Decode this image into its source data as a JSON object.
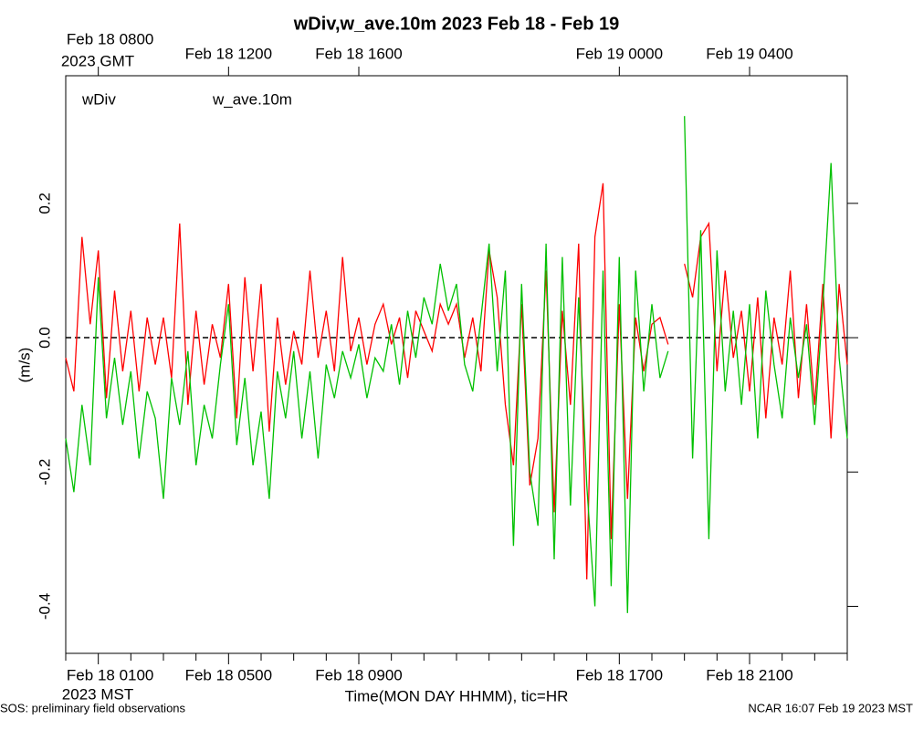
{
  "chart_data": {
    "type": "line",
    "title": "wDiv,w_ave.10m 2023 Feb 18 - Feb 19",
    "x_label": "Time(MON DAY HHMM), tic=HR",
    "y_label": "(m/s)",
    "x_unit_label": "2023 MST",
    "x2_unit_label": "2023 GMT",
    "footer_left": "SOS: preliminary field observations",
    "footer_right": "NCAR 16:07 Feb 19 2023 MST",
    "xlim": [
      0,
      24
    ],
    "xticks": [
      {
        "value": 1,
        "label": "Feb 18 0100"
      },
      {
        "value": 5,
        "label": "Feb 18 0500"
      },
      {
        "value": 9,
        "label": "Feb 18 0900"
      },
      {
        "value": 17,
        "label": "Feb 18 1700"
      },
      {
        "value": 21,
        "label": "Feb 18 2100"
      }
    ],
    "xminorticks": [
      0,
      2,
      3,
      4,
      6,
      7,
      8,
      10,
      11,
      12,
      13,
      14,
      15,
      16,
      18,
      19,
      20,
      22,
      23,
      24
    ],
    "x2ticks": [
      {
        "value": 1,
        "label": "Feb 18 0800"
      },
      {
        "value": 5,
        "label": "Feb 18 1200"
      },
      {
        "value": 9,
        "label": "Feb 18 1600"
      },
      {
        "value": 17,
        "label": "Feb 19 0000"
      },
      {
        "value": 21,
        "label": "Feb 19 0400"
      }
    ],
    "ylim": [
      -0.47,
      0.39
    ],
    "yticks": [
      {
        "value": -0.4,
        "label": "-0.4"
      },
      {
        "value": -0.2,
        "label": "-0.2"
      },
      {
        "value": 0,
        "label": "0.0"
      },
      {
        "value": 0.2,
        "label": "0.2"
      }
    ],
    "hline": 0,
    "x": [
      0,
      0.25,
      0.5,
      0.75,
      1,
      1.25,
      1.5,
      1.75,
      2,
      2.25,
      2.5,
      2.75,
      3,
      3.25,
      3.5,
      3.75,
      4,
      4.25,
      4.5,
      4.75,
      5,
      5.25,
      5.5,
      5.75,
      6,
      6.25,
      6.5,
      6.75,
      7,
      7.25,
      7.5,
      7.75,
      8,
      8.25,
      8.5,
      8.75,
      9,
      9.25,
      9.5,
      9.75,
      10,
      10.25,
      10.5,
      10.75,
      11,
      11.25,
      11.5,
      11.75,
      12,
      12.25,
      12.5,
      12.75,
      13,
      13.25,
      13.5,
      13.75,
      14,
      14.25,
      14.5,
      14.75,
      15,
      15.25,
      15.5,
      15.75,
      16,
      16.25,
      16.5,
      16.75,
      17,
      17.25,
      17.5,
      17.75,
      18,
      18.25,
      18.5,
      18.75,
      19,
      19.25,
      19.5,
      19.75,
      20,
      20.25,
      20.5,
      20.75,
      21,
      21.25,
      21.5,
      21.75,
      22,
      22.25,
      22.5,
      22.75,
      23,
      23.25,
      23.5,
      23.75,
      24
    ],
    "series": [
      {
        "name": "wDiv",
        "color": "#ff0000",
        "values": [
          -0.03,
          -0.08,
          0.15,
          0.02,
          0.13,
          -0.09,
          0.07,
          -0.05,
          0.04,
          -0.08,
          0.03,
          -0.04,
          0.03,
          -0.06,
          0.17,
          -0.1,
          0.04,
          -0.07,
          0.02,
          -0.03,
          0.08,
          -0.12,
          0.09,
          -0.05,
          0.08,
          -0.14,
          0.03,
          -0.07,
          0.01,
          -0.04,
          0.1,
          -0.03,
          0.04,
          -0.05,
          0.12,
          -0.02,
          0.03,
          -0.04,
          0.02,
          0.05,
          -0.01,
          0.03,
          -0.06,
          0.04,
          0.01,
          -0.02,
          0.05,
          0.02,
          0.05,
          -0.03,
          0.03,
          -0.05,
          0.13,
          0.06,
          -0.1,
          -0.19,
          0.05,
          -0.22,
          -0.15,
          0.1,
          -0.26,
          0.04,
          -0.1,
          0.14,
          -0.36,
          0.15,
          0.23,
          -0.3,
          0.05,
          -0.24,
          0.03,
          -0.05,
          0.02,
          0.03,
          -0.01,
          null,
          0.11,
          0.06,
          0.15,
          0.17,
          -0.05,
          0.1,
          -0.03,
          0.04,
          -0.08,
          0.06,
          -0.12,
          0.03,
          -0.04,
          0.1,
          -0.09,
          0.05,
          -0.1,
          0.08,
          -0.15,
          0.08,
          -0.04
        ]
      },
      {
        "name": "w_ave.10m",
        "color": "#00c000",
        "values": [
          -0.15,
          -0.23,
          -0.1,
          -0.19,
          0.09,
          -0.12,
          -0.03,
          -0.13,
          -0.05,
          -0.18,
          -0.08,
          -0.12,
          -0.24,
          -0.06,
          -0.13,
          -0.02,
          -0.19,
          -0.1,
          -0.15,
          -0.04,
          0.05,
          -0.16,
          -0.06,
          -0.19,
          -0.11,
          -0.24,
          -0.05,
          -0.12,
          -0.02,
          -0.15,
          -0.05,
          -0.18,
          -0.04,
          -0.09,
          -0.02,
          -0.06,
          -0.01,
          -0.09,
          -0.03,
          -0.05,
          0.02,
          -0.07,
          0.04,
          -0.03,
          0.06,
          0.02,
          0.11,
          0.04,
          0.08,
          -0.04,
          -0.08,
          0.03,
          0.14,
          -0.05,
          0.1,
          -0.31,
          0.08,
          -0.2,
          -0.28,
          0.14,
          -0.33,
          0.12,
          -0.25,
          0.06,
          -0.22,
          -0.4,
          0.1,
          -0.37,
          0.12,
          -0.41,
          0.1,
          -0.08,
          0.05,
          -0.06,
          -0.02,
          null,
          0.33,
          -0.18,
          0.16,
          -0.3,
          0.13,
          -0.08,
          0.04,
          -0.1,
          0.05,
          -0.15,
          0.07,
          -0.04,
          -0.12,
          0.03,
          -0.06,
          0.02,
          -0.13,
          0.05,
          0.26,
          -0.03,
          -0.15
        ]
      }
    ]
  }
}
